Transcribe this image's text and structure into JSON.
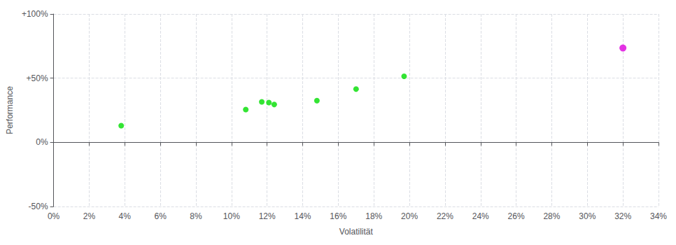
{
  "chart_data": {
    "type": "scatter",
    "xlabel": "Volatilität",
    "ylabel": "Performance",
    "xlim": [
      0.0,
      0.34
    ],
    "ylim": [
      -0.5,
      1.0
    ],
    "xticks": [
      {
        "value": 0.0,
        "label": "0%"
      },
      {
        "value": 0.02,
        "label": "2%"
      },
      {
        "value": 0.04,
        "label": "4%"
      },
      {
        "value": 0.06,
        "label": "6%"
      },
      {
        "value": 0.08,
        "label": "8%"
      },
      {
        "value": 0.1,
        "label": "10%"
      },
      {
        "value": 0.12,
        "label": "12%"
      },
      {
        "value": 0.14,
        "label": "14%"
      },
      {
        "value": 0.16,
        "label": "16%"
      },
      {
        "value": 0.18,
        "label": "18%"
      },
      {
        "value": 0.2,
        "label": "20%"
      },
      {
        "value": 0.22,
        "label": "22%"
      },
      {
        "value": 0.24,
        "label": "24%"
      },
      {
        "value": 0.26,
        "label": "26%"
      },
      {
        "value": 0.28,
        "label": "28%"
      },
      {
        "value": 0.3,
        "label": "30%"
      },
      {
        "value": 0.32,
        "label": "32%"
      },
      {
        "value": 0.34,
        "label": "34%"
      }
    ],
    "yticks": [
      {
        "value": -0.5,
        "label": "-50%"
      },
      {
        "value": 0.0,
        "label": "0%"
      },
      {
        "value": 0.5,
        "label": "+50%"
      },
      {
        "value": 1.0,
        "label": "+100%"
      }
    ],
    "grid": true,
    "series": [
      {
        "color": "#00dd00",
        "x": [
          0.038,
          0.108,
          0.117,
          0.121,
          0.124,
          0.148,
          0.17,
          0.197
        ],
        "values": [
          0.13,
          0.255,
          0.315,
          0.31,
          0.295,
          0.325,
          0.415,
          0.515
        ]
      },
      {
        "color": "#dd00dd",
        "x": [
          0.32
        ],
        "values": [
          0.735
        ]
      }
    ]
  }
}
